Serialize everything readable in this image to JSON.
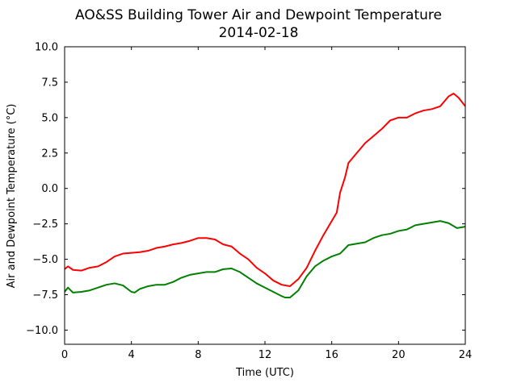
{
  "chart_data": {
    "type": "line",
    "title": "AO&SS Building Tower Air and Dewpoint Temperature",
    "subtitle": "2014-02-18",
    "xlabel": "Time (UTC)",
    "ylabel": "Air and Dewpoint Temperature (°C)",
    "xlim": [
      0,
      24
    ],
    "ylim": [
      -11,
      10
    ],
    "xticks": [
      0,
      4,
      8,
      12,
      16,
      20,
      24
    ],
    "xtick_labels": [
      "0",
      "4",
      "8",
      "12",
      "16",
      "20",
      "24"
    ],
    "yticks": [
      -10,
      -7.5,
      -5,
      -2.5,
      0,
      2.5,
      5,
      7.5,
      10
    ],
    "ytick_labels": [
      "−10.0",
      "−7.5",
      "−5.0",
      "−2.5",
      "0.0",
      "2.5",
      "5.0",
      "7.5",
      "10.0"
    ],
    "grid": false,
    "series": [
      {
        "color": "#ff0000",
        "x": [
          0,
          0.2,
          0.5,
          1,
          1.5,
          2,
          2.5,
          3,
          3.5,
          4,
          4.5,
          5,
          5.5,
          6,
          6.5,
          7,
          7.5,
          8,
          8.5,
          9,
          9.5,
          10,
          10.5,
          11,
          11.5,
          12,
          12.5,
          13,
          13.5,
          14,
          14.5,
          15,
          15.5,
          16,
          16.3,
          16.5,
          16.8,
          17,
          17.5,
          18,
          18.5,
          19,
          19.5,
          20,
          20.5,
          21,
          21.5,
          22,
          22.5,
          23,
          23.3,
          23.6,
          24
        ],
        "y": [
          -5.7,
          -5.5,
          -5.75,
          -5.8,
          -5.6,
          -5.5,
          -5.2,
          -4.8,
          -4.6,
          -4.55,
          -4.5,
          -4.4,
          -4.2,
          -4.1,
          -3.95,
          -3.85,
          -3.7,
          -3.5,
          -3.5,
          -3.6,
          -3.95,
          -4.1,
          -4.6,
          -5.0,
          -5.6,
          -6.0,
          -6.5,
          -6.8,
          -6.9,
          -6.4,
          -5.6,
          -4.4,
          -3.3,
          -2.3,
          -1.7,
          -0.3,
          0.8,
          1.8,
          2.5,
          3.2,
          3.7,
          4.2,
          4.8,
          5.0,
          5.0,
          5.3,
          5.5,
          5.6,
          5.8,
          6.5,
          6.7,
          6.4,
          5.8
        ]
      },
      {
        "color": "#008000",
        "x": [
          0,
          0.2,
          0.5,
          1,
          1.5,
          2,
          2.5,
          3,
          3.5,
          4,
          4.2,
          4.5,
          5,
          5.5,
          6,
          6.5,
          7,
          7.5,
          8,
          8.5,
          9,
          9.5,
          10,
          10.5,
          11,
          11.5,
          12,
          12.5,
          13,
          13.2,
          13.5,
          14,
          14.5,
          15,
          15.5,
          16,
          16.5,
          17,
          17.5,
          18,
          18.5,
          19,
          19.5,
          20,
          20.5,
          21,
          21.5,
          22,
          22.5,
          23,
          23.5,
          24
        ],
        "y": [
          -7.3,
          -7.0,
          -7.35,
          -7.3,
          -7.2,
          -7.0,
          -6.8,
          -6.7,
          -6.85,
          -7.3,
          -7.35,
          -7.1,
          -6.9,
          -6.8,
          -6.8,
          -6.6,
          -6.3,
          -6.1,
          -6.0,
          -5.9,
          -5.9,
          -5.7,
          -5.65,
          -5.9,
          -6.3,
          -6.7,
          -7.0,
          -7.3,
          -7.6,
          -7.7,
          -7.7,
          -7.2,
          -6.2,
          -5.5,
          -5.1,
          -4.8,
          -4.6,
          -4.0,
          -3.9,
          -3.8,
          -3.5,
          -3.3,
          -3.2,
          -3.0,
          -2.9,
          -2.6,
          -2.5,
          -2.4,
          -2.3,
          -2.45,
          -2.8,
          -2.7
        ]
      }
    ]
  }
}
